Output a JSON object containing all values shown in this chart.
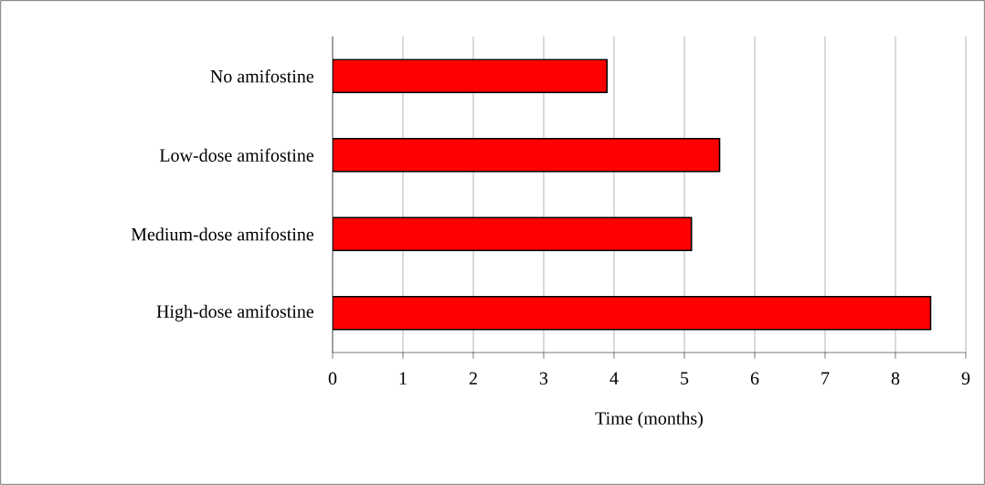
{
  "chart_data": {
    "type": "bar",
    "orientation": "horizontal",
    "xlabel": "Time (months)",
    "categories": [
      "No amifostine",
      "Low-dose amifostine",
      "Medium-dose amifostine",
      "High-dose amifostine"
    ],
    "values": [
      3.9,
      5.5,
      5.1,
      8.5
    ],
    "color": "#ff0000",
    "xlim": [
      0,
      9
    ],
    "xticks": [
      0,
      1,
      2,
      3,
      4,
      5,
      6,
      7,
      8,
      9
    ],
    "grid": "x"
  }
}
